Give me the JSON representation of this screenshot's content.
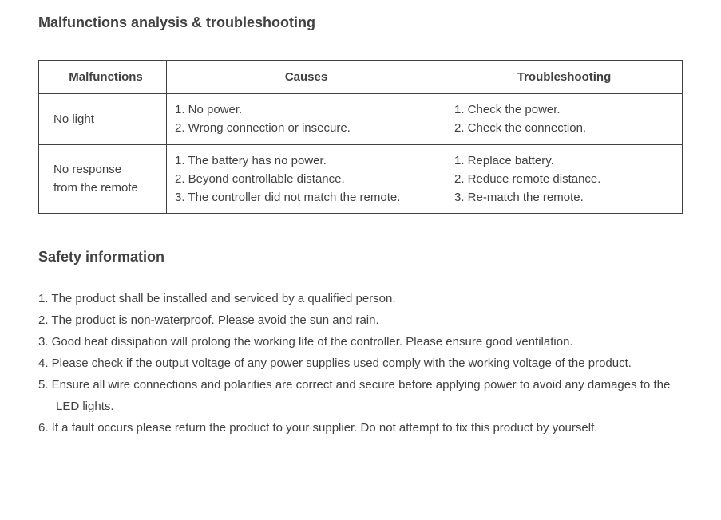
{
  "title": "Malfunctions analysis & troubleshooting",
  "table": {
    "columns": [
      "Malfunctions",
      "Causes",
      "Troubleshooting"
    ],
    "rows": [
      {
        "malfunction": "No light",
        "causes": "1. No power.\n2. Wrong connection or insecure.",
        "trouble": "1. Check the power.\n2. Check the connection."
      },
      {
        "malfunction": "No response\nfrom the remote",
        "causes": "1. The battery has no power.\n2. Beyond controllable distance.\n3. The controller did not match the remote.",
        "trouble": "1. Replace battery.\n2. Reduce remote distance.\n3. Re-match the remote."
      }
    ]
  },
  "safety_title": "Safety information",
  "safety": [
    "1. The product shall be installed and serviced by a qualified person.",
    "2. The product is non-waterproof. Please avoid the sun and rain.",
    "3. Good heat dissipation will prolong the working life of the controller. Please ensure good ventilation.",
    "4. Please check if the output voltage of any power supplies used comply with the working voltage of  the product.",
    "5. Ensure all wire connections and polarities are correct and secure before applying power to avoid any damages to the LED lights.",
    "6. If a fault occurs please return the product to your supplier. Do not attempt to fix this product by yourself."
  ]
}
